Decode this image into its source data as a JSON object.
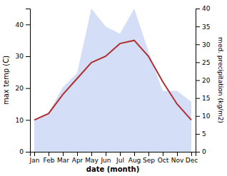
{
  "chart_data": {
    "type": "line",
    "categories": [
      "Jan",
      "Feb",
      "Mar",
      "Apr",
      "May",
      "Jun",
      "Jul",
      "Aug",
      "Sep",
      "Oct",
      "Nov",
      "Dec"
    ],
    "x_label": "date (month)",
    "y_label": "max temp (C)",
    "y2_label": "med. precipitation (kg/m2)",
    "ylim": [
      0,
      45
    ],
    "yticks": [
      0,
      10,
      20,
      30,
      40
    ],
    "y2lim": [
      0,
      40
    ],
    "y2ticks": [
      0,
      5,
      10,
      15,
      20,
      25,
      30,
      35,
      40
    ],
    "series": [
      {
        "type": "area",
        "axis": "y2",
        "color": "#b8c8f0",
        "values": [
          9,
          11,
          18,
          22,
          40,
          35,
          33,
          40,
          28,
          17,
          17,
          14
        ]
      },
      {
        "type": "line",
        "color": "#b03030",
        "values": [
          10,
          12,
          18,
          23,
          28,
          30,
          34,
          35,
          30,
          22,
          15,
          10
        ]
      }
    ]
  }
}
